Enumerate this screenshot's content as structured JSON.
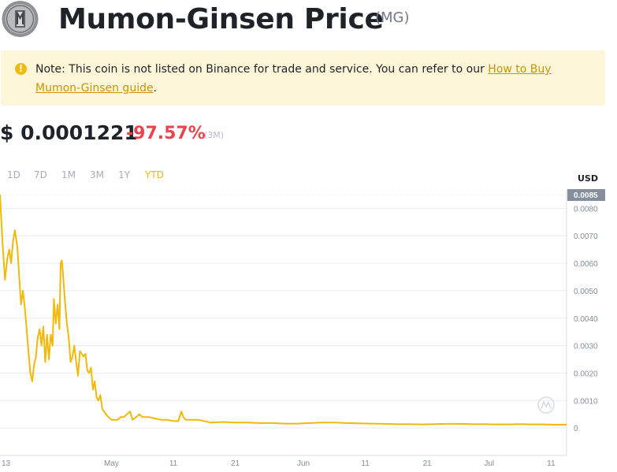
{
  "header": {
    "title": "Mumon-Ginsen Price",
    "symbol": "(MG)"
  },
  "note": {
    "icon": "exclamation-icon",
    "text": "Note: This coin is not listed on Binance for trade and service. You can refer to our ",
    "link_text": "How to Buy Mumon-Ginsen guide",
    "suffix": "."
  },
  "price": {
    "value": "$ 0.0001221",
    "change": "-97.57%",
    "change_period": "(3M)"
  },
  "ranges": [
    "1D",
    "7D",
    "1M",
    "3M",
    "1Y",
    "YTD"
  ],
  "active_range": "YTD",
  "colors": {
    "line": "#f0b90b",
    "negative": "#e8454f",
    "note_bg": "#fef6d8",
    "link": "#c99400"
  },
  "chart_data": {
    "type": "line",
    "currency": "USD",
    "y_ticks": [
      "0.0085",
      "0.0080",
      "0.0070",
      "0.0060",
      "0.0050",
      "0.0040",
      "0.0030",
      "0.0020",
      "0.0010",
      "0"
    ],
    "y_ticks_values": [
      0.0085,
      0.008,
      0.007,
      0.006,
      0.005,
      0.004,
      0.003,
      0.002,
      0.001,
      0
    ],
    "current_label": "0.0085",
    "ylim": [
      -0.001,
      0.0087
    ],
    "x_ticks": [
      {
        "label": "13",
        "day": 0
      },
      {
        "label": "May",
        "day": 18
      },
      {
        "label": "11",
        "day": 28
      },
      {
        "label": "21",
        "day": 38
      },
      {
        "label": "Jun",
        "day": 49
      },
      {
        "label": "11",
        "day": 59
      },
      {
        "label": "21",
        "day": 69
      },
      {
        "label": "Jul",
        "day": 79
      },
      {
        "label": "11",
        "day": 89
      }
    ],
    "xlim": [
      0,
      91.5
    ],
    "series": [
      {
        "points": [
          [
            0,
            0.0085
          ],
          [
            0.4,
            0.0068
          ],
          [
            0.8,
            0.0054
          ],
          [
            1.2,
            0.0062
          ],
          [
            1.5,
            0.0065
          ],
          [
            1.8,
            0.006
          ],
          [
            2.1,
            0.0068
          ],
          [
            2.4,
            0.0072
          ],
          [
            2.8,
            0.0066
          ],
          [
            3.1,
            0.0055
          ],
          [
            3.4,
            0.0045
          ],
          [
            3.7,
            0.005
          ],
          [
            4.0,
            0.0044
          ],
          [
            4.3,
            0.0036
          ],
          [
            4.6,
            0.0028
          ],
          [
            4.9,
            0.002
          ],
          [
            5.2,
            0.0017
          ],
          [
            5.5,
            0.0023
          ],
          [
            5.8,
            0.0026
          ],
          [
            6.1,
            0.0033
          ],
          [
            6.4,
            0.0036
          ],
          [
            6.7,
            0.003
          ],
          [
            7.0,
            0.0037
          ],
          [
            7.3,
            0.0024
          ],
          [
            7.6,
            0.0034
          ],
          [
            7.9,
            0.0025
          ],
          [
            8.2,
            0.0034
          ],
          [
            8.5,
            0.003
          ],
          [
            8.7,
            0.0047
          ],
          [
            9.0,
            0.0038
          ],
          [
            9.3,
            0.0045
          ],
          [
            9.6,
            0.0036
          ],
          [
            9.8,
            0.006
          ],
          [
            10.0,
            0.0061
          ],
          [
            10.2,
            0.0055
          ],
          [
            10.5,
            0.0046
          ],
          [
            10.8,
            0.0038
          ],
          [
            11.1,
            0.0033
          ],
          [
            11.4,
            0.0024
          ],
          [
            11.7,
            0.0026
          ],
          [
            12.0,
            0.003
          ],
          [
            12.3,
            0.0024
          ],
          [
            12.6,
            0.0019
          ],
          [
            12.9,
            0.0028
          ],
          [
            13.2,
            0.0027
          ],
          [
            13.5,
            0.0026
          ],
          [
            13.8,
            0.0027
          ],
          [
            14.1,
            0.0021
          ],
          [
            14.4,
            0.002
          ],
          [
            14.7,
            0.0022
          ],
          [
            15.0,
            0.0014
          ],
          [
            15.3,
            0.0017
          ],
          [
            15.6,
            0.0011
          ],
          [
            15.9,
            0.001
          ],
          [
            16.2,
            0.0012
          ],
          [
            16.5,
            0.0007
          ],
          [
            16.8,
            0.0006
          ],
          [
            17.1,
            0.0005
          ],
          [
            17.5,
            0.0004
          ],
          [
            18.0,
            0.0003
          ],
          [
            18.5,
            0.0003
          ],
          [
            19.0,
            0.0003
          ],
          [
            19.5,
            0.0004
          ],
          [
            20.0,
            0.0004
          ],
          [
            20.5,
            0.0005
          ],
          [
            21.0,
            0.0006
          ],
          [
            21.4,
            0.0003
          ],
          [
            22.0,
            0.0004
          ],
          [
            22.5,
            0.0005
          ],
          [
            23.0,
            0.0004
          ],
          [
            23.5,
            0.0004
          ],
          [
            24.0,
            0.0004
          ],
          [
            25.0,
            0.00035
          ],
          [
            26.0,
            0.0003
          ],
          [
            27.0,
            0.0003
          ],
          [
            28.0,
            0.00025
          ],
          [
            28.8,
            0.00025
          ],
          [
            29.3,
            0.0006
          ],
          [
            29.6,
            0.0004
          ],
          [
            30.0,
            0.0003
          ],
          [
            31.0,
            0.0003
          ],
          [
            32.0,
            0.0003
          ],
          [
            34.0,
            0.0002
          ],
          [
            36.0,
            0.00022
          ],
          [
            38.0,
            0.0002
          ],
          [
            40.0,
            0.0002
          ],
          [
            42.0,
            0.00018
          ],
          [
            44.0,
            0.00018
          ],
          [
            46.0,
            0.00016
          ],
          [
            48.0,
            0.00016
          ],
          [
            50.0,
            0.00018
          ],
          [
            52.0,
            0.0002
          ],
          [
            54.0,
            0.0002
          ],
          [
            56.0,
            0.00018
          ],
          [
            58.0,
            0.00017
          ],
          [
            60.0,
            0.00016
          ],
          [
            62.0,
            0.00015
          ],
          [
            64.0,
            0.00014
          ],
          [
            66.0,
            0.00014
          ],
          [
            68.0,
            0.00013
          ],
          [
            70.0,
            0.00014
          ],
          [
            72.0,
            0.00015
          ],
          [
            74.0,
            0.00015
          ],
          [
            76.0,
            0.00014
          ],
          [
            78.0,
            0.00014
          ],
          [
            80.0,
            0.00013
          ],
          [
            82.0,
            0.00013
          ],
          [
            84.0,
            0.00014
          ],
          [
            86.0,
            0.00013
          ],
          [
            88.0,
            0.00013
          ],
          [
            89.5,
            0.00012
          ],
          [
            91.5,
            0.0001221
          ]
        ]
      }
    ]
  }
}
